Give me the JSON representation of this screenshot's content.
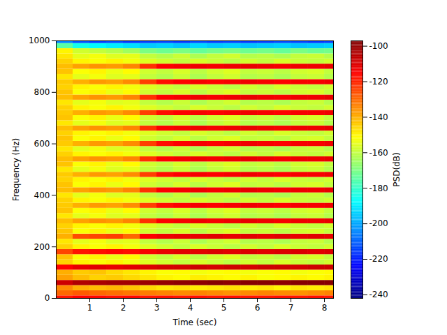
{
  "chart_data": {
    "type": "heatmap",
    "x_label": "Time (sec)",
    "y_label": "Frequency (Hz)",
    "xlim": [
      0,
      8.27
    ],
    "xticks": [
      1,
      2,
      3,
      4,
      5,
      6,
      7,
      8
    ],
    "ylim": [
      0,
      1000
    ],
    "yticks": [
      0,
      200,
      400,
      600,
      800,
      1000
    ],
    "x_edges": [
      0,
      0.5,
      1,
      1.5,
      2,
      2.5,
      3,
      3.5,
      4,
      4.5,
      5,
      5.5,
      6,
      6.5,
      7,
      7.5,
      8,
      8.5
    ],
    "y_edges": [
      -10,
      10,
      30,
      50,
      70,
      90,
      110,
      130,
      150,
      170,
      190,
      210,
      230,
      250,
      270,
      290,
      310,
      330,
      350,
      370,
      390,
      410,
      430,
      450,
      470,
      490,
      510,
      530,
      550,
      570,
      590,
      610,
      630,
      650,
      670,
      690,
      710,
      730,
      750,
      770,
      790,
      810,
      830,
      850,
      870,
      890,
      910,
      930,
      950,
      970,
      990,
      1010
    ],
    "values": [
      [
        -118,
        -115,
        -116,
        -117,
        -116,
        -118,
        -117,
        -118,
        -117,
        -118,
        -117,
        -118,
        -118,
        -117,
        -118,
        -117,
        -118
      ],
      [
        -130,
        -128,
        -130,
        -131,
        -132,
        -133,
        -134,
        -135,
        -134,
        -135,
        -136,
        -135,
        -134,
        -135,
        -136,
        -135,
        -134
      ],
      [
        -135,
        -140,
        -142,
        -141,
        -143,
        -146,
        -148,
        -147,
        -149,
        -148,
        -147,
        -149,
        -148,
        -150,
        -148,
        -149,
        -148
      ],
      [
        -108,
        -104,
        -103,
        -102,
        -102,
        -101,
        -100,
        -99,
        -99,
        -98,
        -99,
        -98,
        -98,
        -99,
        -98,
        -98,
        -98
      ],
      [
        -138,
        -142,
        -145,
        -144,
        -146,
        -148,
        -150,
        -151,
        -149,
        -150,
        -151,
        -150,
        -152,
        -151,
        -150,
        -151,
        -150
      ],
      [
        -140,
        -144,
        -143,
        -146,
        -148,
        -150,
        -152,
        -151,
        -153,
        -152,
        -151,
        -153,
        -152,
        -151,
        -153,
        -152,
        -151
      ],
      [
        -115,
        -112,
        -111,
        -112,
        -111,
        -110,
        -109,
        -109,
        -108,
        -109,
        -108,
        -109,
        -108,
        -108,
        -109,
        -108,
        -108
      ],
      [
        -145,
        -150,
        -152,
        -150,
        -153,
        -156,
        -158,
        -160,
        -157,
        -159,
        -161,
        -158,
        -160,
        -157,
        -159,
        -160,
        -158
      ],
      [
        -143,
        -152,
        -150,
        -154,
        -151,
        -158,
        -160,
        -157,
        -161,
        -158,
        -156,
        -160,
        -159,
        -161,
        -158,
        -157,
        -160
      ],
      [
        -125,
        -118,
        -117,
        -116,
        -117,
        -114,
        -112,
        -111,
        -111,
        -110,
        -111,
        -110,
        -111,
        -110,
        -110,
        -111,
        -110
      ],
      [
        -145,
        -150,
        -152,
        -150,
        -153,
        -156,
        -158,
        -160,
        -157,
        -159,
        -161,
        -158,
        -160,
        -157,
        -159,
        -160,
        -158
      ],
      [
        -148,
        -155,
        -153,
        -156,
        -155,
        -160,
        -162,
        -159,
        -163,
        -160,
        -158,
        -162,
        -161,
        -163,
        -160,
        -159,
        -162
      ],
      [
        -140,
        -126,
        -125,
        -124,
        -130,
        -115,
        -113,
        -112,
        -112,
        -111,
        -112,
        -111,
        -112,
        -111,
        -112,
        -111,
        -112
      ],
      [
        -143,
        -152,
        -150,
        -154,
        -151,
        -158,
        -160,
        -157,
        -161,
        -158,
        -156,
        -160,
        -159,
        -161,
        -158,
        -157,
        -160
      ],
      [
        -145,
        -150,
        -152,
        -150,
        -153,
        -156,
        -158,
        -160,
        -157,
        -159,
        -161,
        -158,
        -160,
        -157,
        -159,
        -160,
        -158
      ],
      [
        -142,
        -138,
        -136,
        -137,
        -134,
        -122,
        -115,
        -114,
        -113,
        -114,
        -113,
        -112,
        -113,
        -114,
        -113,
        -113,
        -112
      ],
      [
        -148,
        -155,
        -153,
        -156,
        -155,
        -160,
        -162,
        -159,
        -163,
        -160,
        -158,
        -162,
        -161,
        -163,
        -160,
        -159,
        -162
      ],
      [
        -143,
        -152,
        -150,
        -154,
        -151,
        -158,
        -160,
        -157,
        -161,
        -158,
        -156,
        -160,
        -159,
        -161,
        -158,
        -157,
        -160
      ],
      [
        -144,
        -140,
        -137,
        -138,
        -135,
        -124,
        -117,
        -115,
        -114,
        -115,
        -114,
        -113,
        -114,
        -115,
        -114,
        -114,
        -113
      ],
      [
        -145,
        -150,
        -152,
        -150,
        -153,
        -156,
        -158,
        -160,
        -157,
        -159,
        -161,
        -158,
        -160,
        -157,
        -159,
        -160,
        -158
      ],
      [
        -148,
        -155,
        -153,
        -156,
        -155,
        -160,
        -162,
        -159,
        -163,
        -160,
        -158,
        -162,
        -161,
        -163,
        -160,
        -159,
        -162
      ],
      [
        -142,
        -138,
        -136,
        -137,
        -134,
        -122,
        -115,
        -114,
        -113,
        -114,
        -113,
        -112,
        -113,
        -114,
        -113,
        -113,
        -112
      ],
      [
        -143,
        -152,
        -150,
        -154,
        -151,
        -158,
        -160,
        -157,
        -161,
        -158,
        -156,
        -160,
        -159,
        -161,
        -158,
        -157,
        -160
      ],
      [
        -145,
        -150,
        -152,
        -150,
        -153,
        -156,
        -158,
        -160,
        -157,
        -159,
        -161,
        -158,
        -160,
        -157,
        -159,
        -160,
        -158
      ],
      [
        -144,
        -140,
        -137,
        -138,
        -135,
        -124,
        -117,
        -115,
        -114,
        -115,
        -114,
        -113,
        -114,
        -115,
        -114,
        -114,
        -113
      ],
      [
        -148,
        -155,
        -153,
        -156,
        -155,
        -160,
        -162,
        -159,
        -163,
        -160,
        -158,
        -162,
        -161,
        -163,
        -160,
        -159,
        -162
      ],
      [
        -143,
        -152,
        -150,
        -154,
        -151,
        -158,
        -160,
        -157,
        -161,
        -158,
        -156,
        -160,
        -159,
        -161,
        -158,
        -157,
        -160
      ],
      [
        -142,
        -138,
        -136,
        -137,
        -134,
        -122,
        -115,
        -114,
        -113,
        -114,
        -113,
        -112,
        -113,
        -114,
        -113,
        -113,
        -112
      ],
      [
        -145,
        -150,
        -152,
        -150,
        -153,
        -156,
        -158,
        -160,
        -157,
        -159,
        -161,
        -158,
        -160,
        -157,
        -159,
        -160,
        -158
      ],
      [
        -148,
        -155,
        -153,
        -156,
        -155,
        -160,
        -162,
        -159,
        -163,
        -160,
        -158,
        -162,
        -161,
        -163,
        -160,
        -159,
        -162
      ],
      [
        -144,
        -140,
        -137,
        -138,
        -135,
        -124,
        -117,
        -115,
        -114,
        -115,
        -114,
        -113,
        -114,
        -115,
        -114,
        -114,
        -113
      ],
      [
        -143,
        -152,
        -150,
        -154,
        -151,
        -158,
        -160,
        -157,
        -161,
        -158,
        -156,
        -160,
        -159,
        -161,
        -158,
        -157,
        -160
      ],
      [
        -145,
        -150,
        -152,
        -150,
        -153,
        -156,
        -158,
        -160,
        -157,
        -159,
        -161,
        -158,
        -160,
        -157,
        -159,
        -160,
        -158
      ],
      [
        -142,
        -138,
        -136,
        -137,
        -134,
        -122,
        -115,
        -114,
        -113,
        -114,
        -113,
        -112,
        -113,
        -114,
        -113,
        -113,
        -112
      ],
      [
        -148,
        -155,
        -153,
        -156,
        -155,
        -160,
        -162,
        -159,
        -163,
        -160,
        -158,
        -162,
        -161,
        -163,
        -160,
        -159,
        -162
      ],
      [
        -143,
        -152,
        -150,
        -154,
        -151,
        -158,
        -160,
        -157,
        -161,
        -158,
        -156,
        -160,
        -159,
        -161,
        -158,
        -157,
        -160
      ],
      [
        -144,
        -140,
        -137,
        -138,
        -135,
        -124,
        -117,
        -115,
        -114,
        -115,
        -114,
        -113,
        -114,
        -115,
        -114,
        -114,
        -113
      ],
      [
        -145,
        -150,
        -152,
        -150,
        -153,
        -156,
        -158,
        -160,
        -157,
        -159,
        -161,
        -158,
        -160,
        -157,
        -159,
        -160,
        -158
      ],
      [
        -148,
        -155,
        -153,
        -156,
        -155,
        -160,
        -162,
        -159,
        -163,
        -160,
        -158,
        -162,
        -161,
        -163,
        -160,
        -159,
        -162
      ],
      [
        -142,
        -138,
        -136,
        -137,
        -134,
        -122,
        -115,
        -114,
        -113,
        -114,
        -113,
        -112,
        -113,
        -114,
        -113,
        -113,
        -112
      ],
      [
        -143,
        -152,
        -150,
        -154,
        -151,
        -158,
        -160,
        -157,
        -161,
        -158,
        -156,
        -160,
        -159,
        -161,
        -158,
        -157,
        -160
      ],
      [
        -145,
        -150,
        -152,
        -150,
        -153,
        -156,
        -158,
        -160,
        -157,
        -159,
        -161,
        -158,
        -160,
        -157,
        -159,
        -160,
        -158
      ],
      [
        -144,
        -140,
        -137,
        -138,
        -135,
        -124,
        -117,
        -115,
        -114,
        -115,
        -114,
        -113,
        -114,
        -115,
        -114,
        -114,
        -113
      ],
      [
        -148,
        -155,
        -153,
        -156,
        -155,
        -160,
        -162,
        -159,
        -163,
        -160,
        -158,
        -162,
        -161,
        -163,
        -160,
        -159,
        -162
      ],
      [
        -143,
        -152,
        -150,
        -154,
        -151,
        -158,
        -160,
        -157,
        -161,
        -158,
        -156,
        -160,
        -159,
        -161,
        -158,
        -157,
        -160
      ],
      [
        -142,
        -138,
        -136,
        -137,
        -134,
        -122,
        -115,
        -114,
        -113,
        -114,
        -113,
        -112,
        -113,
        -114,
        -113,
        -113,
        -112
      ],
      [
        -145,
        -150,
        -152,
        -150,
        -153,
        -156,
        -158,
        -160,
        -157,
        -159,
        -161,
        -158,
        -160,
        -157,
        -159,
        -160,
        -158
      ],
      [
        -148,
        -155,
        -153,
        -156,
        -155,
        -160,
        -162,
        -159,
        -163,
        -160,
        -158,
        -162,
        -161,
        -163,
        -160,
        -159,
        -162
      ],
      [
        -150,
        -158,
        -160,
        -162,
        -165,
        -170,
        -172,
        -170,
        -173,
        -171,
        -170,
        -172,
        -171,
        -173,
        -170,
        -172,
        -171
      ],
      [
        -175,
        -185,
        -188,
        -190,
        -192,
        -195,
        -194,
        -196,
        -193,
        -195,
        -194,
        -196,
        -195,
        -194,
        -196,
        -195,
        -194
      ],
      [
        -205,
        -212,
        -215,
        -213,
        -216,
        -215,
        -214,
        -216,
        -213,
        -215,
        -214,
        -216,
        -215,
        -213,
        -214,
        -216,
        -215
      ]
    ],
    "colorbar": {
      "label": "PSD(dB)",
      "lim": [
        -242,
        -97
      ],
      "ticks": [
        -240,
        -220,
        -200,
        -180,
        -160,
        -140,
        -120,
        -100
      ]
    }
  }
}
